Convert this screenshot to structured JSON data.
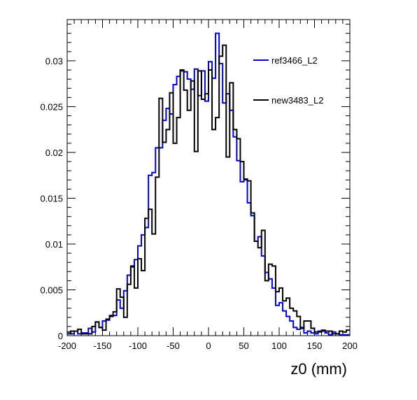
{
  "chart_data": {
    "type": "line",
    "style": "step-histogram",
    "xlabel": "z0 (mm)",
    "ylabel": "",
    "xlim": [
      -200,
      200
    ],
    "ylim": [
      0,
      0.0345
    ],
    "x_ticks": [
      "-200",
      "-150",
      "-100",
      "-50",
      "0",
      "50",
      "100",
      "150",
      "200"
    ],
    "y_ticks": [
      "0",
      "0.005",
      "0.01",
      "0.015",
      "0.02",
      "0.025",
      "0.03"
    ],
    "legend_position": "top-right",
    "x_bin_edges": [
      -200,
      -195,
      -190,
      -185,
      -180,
      -175,
      -170,
      -165,
      -160,
      -155,
      -150,
      -145,
      -140,
      -135,
      -130,
      -125,
      -120,
      -115,
      -110,
      -105,
      -100,
      -95,
      -90,
      -85,
      -80,
      -75,
      -70,
      -65,
      -60,
      -55,
      -50,
      -45,
      -40,
      -35,
      -30,
      -25,
      -20,
      -15,
      -10,
      -5,
      0,
      5,
      10,
      15,
      20,
      25,
      30,
      35,
      40,
      45,
      50,
      55,
      60,
      65,
      70,
      75,
      80,
      85,
      90,
      95,
      100,
      105,
      110,
      115,
      120,
      125,
      130,
      135,
      140,
      145,
      150,
      155,
      160,
      165,
      170,
      175,
      180,
      185,
      190,
      195,
      200
    ],
    "series": [
      {
        "name": "ref3466_L2",
        "color": "#0000cc",
        "values": [
          0.0004,
          0.0002,
          0.0005,
          0.0002,
          0.0003,
          0.0003,
          0.0008,
          0.0004,
          0.0015,
          0.0009,
          0.0016,
          0.0017,
          0.0022,
          0.0022,
          0.0039,
          0.003,
          0.0049,
          0.0066,
          0.0075,
          0.0083,
          0.0098,
          0.011,
          0.0118,
          0.0175,
          0.0178,
          0.0205,
          0.0205,
          0.0235,
          0.0248,
          0.0242,
          0.0274,
          0.0283,
          0.0289,
          0.0288,
          0.028,
          0.0269,
          0.0291,
          0.0262,
          0.0289,
          0.0256,
          0.0299,
          0.0281,
          0.033,
          0.0297,
          0.0254,
          0.0264,
          0.0246,
          0.0217,
          0.0191,
          0.0168,
          0.017,
          0.0145,
          0.0131,
          0.0103,
          0.0108,
          0.0087,
          0.0069,
          0.0062,
          0.0052,
          0.0033,
          0.0036,
          0.0027,
          0.0021,
          0.0016,
          0.0009,
          0.0007,
          0.0009,
          0.0003,
          0.0005,
          0.0003,
          0.0002,
          0.0005,
          0.0005,
          0.0003,
          0.0001,
          0.0004,
          0.0002,
          0.0001,
          0.0001,
          0.0001
        ]
      },
      {
        "name": "new3483_L2",
        "color": "#000000",
        "values": [
          0.0002,
          0.0005,
          0.0005,
          0.0007,
          0.0002,
          0.0002,
          0.0002,
          0.001,
          0.0015,
          0.0009,
          0.0006,
          0.0018,
          0.0021,
          0.0026,
          0.0051,
          0.0042,
          0.002,
          0.0056,
          0.0076,
          0.0052,
          0.0084,
          0.0071,
          0.0128,
          0.0138,
          0.0111,
          0.0173,
          0.0259,
          0.0211,
          0.0225,
          0.0265,
          0.021,
          0.0238,
          0.029,
          0.0268,
          0.0246,
          0.0278,
          0.0201,
          0.0289,
          0.0258,
          0.0264,
          0.029,
          0.0225,
          0.0238,
          0.0305,
          0.0317,
          0.0195,
          0.0276,
          0.0225,
          0.0215,
          0.019,
          0.0171,
          0.0169,
          0.0134,
          0.0103,
          0.0096,
          0.0115,
          0.006,
          0.0078,
          0.0076,
          0.0048,
          0.0052,
          0.0038,
          0.0041,
          0.003,
          0.0027,
          0.0021,
          0.0008,
          0.0016,
          0.0016,
          0.0008,
          0.0004,
          0.0004,
          0.0006,
          0.0005,
          0.0005,
          0.0002,
          0.0002,
          0.0005,
          0.0004,
          0.0006
        ]
      }
    ]
  }
}
